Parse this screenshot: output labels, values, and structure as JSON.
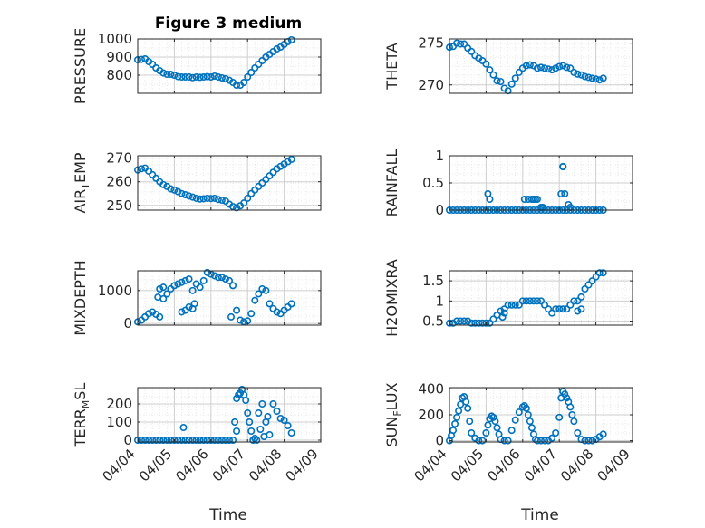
{
  "figure_title": "Figure 3 medium",
  "x_ticks": [
    "04/04",
    "04/05",
    "04/06",
    "04/07",
    "04/08",
    "04/09"
  ],
  "x_label": "Time",
  "colors": {
    "marker": "#0072BD",
    "axes": "#262626",
    "grid": "#dcdcdc"
  },
  "chart_data": [
    {
      "type": "scatter",
      "id": "pressure",
      "ylabel": "PRESSURE",
      "ylim": [
        700,
        1000
      ],
      "yticks": [
        800,
        900,
        1000
      ],
      "xlim": [
        0,
        5
      ],
      "grid": true,
      "series": [
        {
          "x": [
            0.0,
            0.1,
            0.2,
            0.3,
            0.4,
            0.5,
            0.6,
            0.7,
            0.8,
            0.9,
            1.0,
            1.1,
            1.2,
            1.3,
            1.4,
            1.5,
            1.6,
            1.7,
            1.8,
            1.9,
            2.0,
            2.1,
            2.2,
            2.3,
            2.4,
            2.5,
            2.6,
            2.7,
            2.8,
            2.9,
            3.0,
            3.1,
            3.2,
            3.3,
            3.4,
            3.5,
            3.6,
            3.7,
            3.8,
            3.9,
            4.0,
            4.1,
            4.2
          ],
          "y": [
            885,
            887,
            890,
            875,
            860,
            840,
            825,
            812,
            805,
            805,
            800,
            792,
            790,
            790,
            790,
            786,
            790,
            788,
            790,
            792,
            790,
            795,
            790,
            785,
            780,
            772,
            760,
            745,
            745,
            760,
            790,
            815,
            840,
            860,
            880,
            900,
            915,
            930,
            945,
            955,
            970,
            985,
            995
          ]
        }
      ]
    },
    {
      "type": "scatter",
      "id": "theta",
      "ylabel": "THETA",
      "ylim": [
        269,
        275.5
      ],
      "yticks": [
        270,
        275
      ],
      "xlim": [
        0,
        5
      ],
      "grid": true,
      "series": [
        {
          "x": [
            0.0,
            0.1,
            0.2,
            0.3,
            0.4,
            0.5,
            0.6,
            0.7,
            0.8,
            0.9,
            1.0,
            1.1,
            1.2,
            1.3,
            1.4,
            1.5,
            1.6,
            1.7,
            1.8,
            1.9,
            2.0,
            2.1,
            2.2,
            2.3,
            2.4,
            2.5,
            2.6,
            2.7,
            2.8,
            2.9,
            3.0,
            3.1,
            3.2,
            3.3,
            3.4,
            3.5,
            3.6,
            3.7,
            3.8,
            3.9,
            4.0,
            4.1,
            4.2
          ],
          "y": [
            274.5,
            274.6,
            275.0,
            274.9,
            274.9,
            274.4,
            274.0,
            273.5,
            273.2,
            272.9,
            272.5,
            271.8,
            271.2,
            270.5,
            270.4,
            269.6,
            269.3,
            270.1,
            270.8,
            271.5,
            272.0,
            272.3,
            272.4,
            272.3,
            272.0,
            272.1,
            272.0,
            271.9,
            271.8,
            272.0,
            272.2,
            272.3,
            272.1,
            272.0,
            271.5,
            271.3,
            271.2,
            271.0,
            270.9,
            270.8,
            270.7,
            270.6,
            270.8
          ]
        }
      ]
    },
    {
      "type": "scatter",
      "id": "air-temp",
      "ylabel": "AIR_TEMP",
      "ylim": [
        248,
        271
      ],
      "yticks": [
        250,
        260,
        270
      ],
      "xlim": [
        0,
        5
      ],
      "grid": true,
      "series": [
        {
          "x": [
            0.0,
            0.1,
            0.2,
            0.3,
            0.4,
            0.5,
            0.6,
            0.7,
            0.8,
            0.9,
            1.0,
            1.1,
            1.2,
            1.3,
            1.4,
            1.5,
            1.6,
            1.7,
            1.8,
            1.9,
            2.0,
            2.1,
            2.2,
            2.3,
            2.4,
            2.5,
            2.6,
            2.7,
            2.8,
            2.9,
            3.0,
            3.1,
            3.2,
            3.3,
            3.4,
            3.5,
            3.6,
            3.7,
            3.8,
            3.9,
            4.0,
            4.1,
            4.2
          ],
          "y": [
            265,
            265.5,
            265.8,
            264.5,
            263,
            261.5,
            260,
            258.8,
            258,
            257,
            256.5,
            255.8,
            255,
            254.5,
            254,
            253.5,
            253,
            252.7,
            252.8,
            253,
            252.9,
            253,
            252.5,
            252.2,
            251.8,
            250.5,
            249.5,
            249,
            249.8,
            251,
            253,
            255,
            256.5,
            258,
            259.5,
            261,
            262.5,
            264,
            265.5,
            266.5,
            267.5,
            268.5,
            269.5
          ]
        }
      ]
    },
    {
      "type": "scatter",
      "id": "rainfall",
      "ylabel": "RAINFALL",
      "ylim": [
        0,
        1
      ],
      "yticks": [
        0,
        0.5,
        1
      ],
      "xlim": [
        0,
        5
      ],
      "grid": true,
      "series": [
        {
          "x": [
            0.0,
            0.1,
            0.2,
            0.3,
            0.4,
            0.5,
            0.6,
            0.7,
            0.8,
            0.9,
            1.0,
            1.1,
            1.2,
            1.3,
            1.4,
            1.5,
            1.6,
            1.7,
            1.8,
            1.9,
            2.0,
            2.1,
            2.2,
            2.3,
            2.4,
            2.5,
            2.6,
            2.7,
            2.8,
            2.9,
            3.0,
            3.1,
            3.2,
            3.3,
            3.4,
            3.5,
            3.6,
            3.7,
            3.8,
            3.9,
            4.0,
            4.1,
            4.2,
            1.05,
            1.1,
            2.05,
            2.15,
            2.25,
            2.3,
            2.35,
            2.4,
            2.5,
            2.55,
            3.05,
            3.1,
            3.1,
            3.15,
            3.25,
            3.3
          ],
          "y": [
            0,
            0,
            0,
            0,
            0,
            0,
            0,
            0,
            0,
            0,
            0,
            0,
            0,
            0,
            0,
            0,
            0,
            0,
            0,
            0,
            0,
            0,
            0,
            0,
            0,
            0,
            0,
            0,
            0,
            0,
            0,
            0,
            0,
            0,
            0,
            0,
            0,
            0,
            0,
            0,
            0,
            0,
            0,
            0.3,
            0.2,
            0.2,
            0.2,
            0.2,
            0.2,
            0.2,
            0.2,
            0.05,
            0.05,
            0.3,
            0.8,
            0.8,
            0.3,
            0.1,
            0.05
          ]
        }
      ]
    },
    {
      "type": "scatter",
      "id": "mixdepth",
      "ylabel": "MIXDEPTH",
      "ylim": [
        -50,
        1600
      ],
      "yticks": [
        0,
        1000
      ],
      "xlim": [
        0,
        5
      ],
      "grid": true,
      "series": [
        {
          "x": [
            0.0,
            0.1,
            0.2,
            0.3,
            0.4,
            0.5,
            0.6,
            0.7,
            0.8,
            0.9,
            1.0,
            1.1,
            1.2,
            1.3,
            1.4,
            1.5,
            1.6,
            1.7,
            1.8,
            1.9,
            2.0,
            2.1,
            2.2,
            2.3,
            2.4,
            2.5,
            2.6,
            2.7,
            2.8,
            2.9,
            3.0,
            3.1,
            3.2,
            3.3,
            3.4,
            3.5,
            3.6,
            3.7,
            3.8,
            3.9,
            4.0,
            4.1,
            4.2,
            0.55,
            0.6,
            0.7,
            1.2,
            1.3,
            1.4,
            1.5,
            1.55,
            2.55
          ],
          "y": [
            50,
            100,
            200,
            300,
            350,
            280,
            200,
            750,
            900,
            1050,
            1150,
            1200,
            1250,
            1300,
            1350,
            1000,
            1200,
            1100,
            1300,
            1550,
            1500,
            1450,
            1400,
            1400,
            1350,
            1300,
            1150,
            400,
            100,
            50,
            80,
            300,
            700,
            900,
            1050,
            1000,
            600,
            450,
            350,
            300,
            400,
            500,
            600,
            800,
            1050,
            1100,
            350,
            400,
            500,
            450,
            600,
            200
          ]
        }
      ]
    },
    {
      "type": "scatter",
      "id": "h2omixra",
      "ylabel": "H2OMIXRA",
      "ylim": [
        0.4,
        1.75
      ],
      "yticks": [
        0.5,
        1,
        1.5
      ],
      "xlim": [
        0,
        5
      ],
      "grid": true,
      "series": [
        {
          "x": [
            0.0,
            0.1,
            0.2,
            0.3,
            0.4,
            0.5,
            0.6,
            0.7,
            0.8,
            0.9,
            1.0,
            1.1,
            1.2,
            1.3,
            1.4,
            1.5,
            1.6,
            1.7,
            1.8,
            1.9,
            2.0,
            2.1,
            2.2,
            2.3,
            2.4,
            2.5,
            2.6,
            2.7,
            2.8,
            2.9,
            3.0,
            3.1,
            3.2,
            3.3,
            3.4,
            3.5,
            3.6,
            3.7,
            3.8,
            3.9,
            4.0,
            4.1,
            4.2,
            1.45,
            1.5,
            3.5,
            3.6
          ],
          "y": [
            0.45,
            0.45,
            0.5,
            0.5,
            0.5,
            0.5,
            0.45,
            0.45,
            0.45,
            0.45,
            0.45,
            0.45,
            0.55,
            0.65,
            0.75,
            0.8,
            0.9,
            0.9,
            0.9,
            0.9,
            1.0,
            1.0,
            1.0,
            1.0,
            1.0,
            1.0,
            0.9,
            0.8,
            0.7,
            0.8,
            0.8,
            0.8,
            0.8,
            0.9,
            1.0,
            1.0,
            1.1,
            1.3,
            1.4,
            1.5,
            1.6,
            1.7,
            1.7,
            0.6,
            0.7,
            0.75,
            0.8
          ]
        }
      ]
    },
    {
      "type": "scatter",
      "id": "terr-msl",
      "ylabel": "TERR_MSL",
      "ylim": [
        -10,
        290
      ],
      "yticks": [
        0,
        100,
        200
      ],
      "xlim": [
        0,
        5
      ],
      "grid": true,
      "series": [
        {
          "x": [
            0.0,
            0.1,
            0.2,
            0.3,
            0.4,
            0.5,
            0.6,
            0.7,
            0.8,
            0.9,
            1.0,
            1.1,
            1.2,
            1.3,
            1.4,
            1.5,
            1.6,
            1.7,
            1.8,
            1.9,
            2.0,
            2.1,
            2.2,
            2.3,
            2.4,
            2.5,
            2.6,
            2.7,
            2.75,
            2.8,
            2.85,
            2.9,
            2.95,
            3.0,
            3.05,
            3.1,
            3.15,
            3.2,
            3.3,
            3.4,
            3.5,
            3.6,
            3.7,
            3.8,
            3.9,
            4.0,
            4.1,
            4.2,
            1.25,
            2.65,
            2.7,
            3.25,
            3.35,
            3.45,
            3.55
          ],
          "y": [
            0,
            0,
            0,
            0,
            0,
            0,
            0,
            0,
            0,
            0,
            0,
            0,
            0,
            0,
            0,
            0,
            0,
            0,
            0,
            0,
            0,
            0,
            0,
            0,
            0,
            0,
            0,
            230,
            250,
            260,
            280,
            250,
            220,
            150,
            100,
            50,
            0,
            10,
            150,
            200,
            100,
            30,
            200,
            160,
            120,
            110,
            80,
            40,
            70,
            100,
            50,
            0,
            60,
            20,
            130
          ]
        }
      ]
    },
    {
      "type": "scatter",
      "id": "sun-flux",
      "ylabel": "SUN_FLUX",
      "ylim": [
        -10,
        410
      ],
      "yticks": [
        0,
        200,
        400
      ],
      "xlim": [
        0,
        5
      ],
      "grid": true,
      "series": [
        {
          "x": [
            0.0,
            0.05,
            0.1,
            0.15,
            0.2,
            0.25,
            0.3,
            0.35,
            0.4,
            0.45,
            0.5,
            0.55,
            0.6,
            0.7,
            0.8,
            0.9,
            1.0,
            1.05,
            1.1,
            1.15,
            1.2,
            1.25,
            1.3,
            1.35,
            1.4,
            1.5,
            1.6,
            1.7,
            1.8,
            1.9,
            2.0,
            2.05,
            2.1,
            2.15,
            2.2,
            2.25,
            2.3,
            2.35,
            2.4,
            2.5,
            2.6,
            2.7,
            2.8,
            2.9,
            3.0,
            3.05,
            3.1,
            3.15,
            3.2,
            3.25,
            3.3,
            3.35,
            3.4,
            3.5,
            3.6,
            3.7,
            3.8,
            3.9,
            4.0,
            4.1,
            4.2
          ],
          "y": [
            0,
            40,
            80,
            130,
            180,
            230,
            280,
            330,
            340,
            300,
            250,
            150,
            60,
            20,
            0,
            0,
            60,
            120,
            170,
            190,
            180,
            150,
            100,
            50,
            10,
            0,
            0,
            80,
            160,
            220,
            260,
            270,
            250,
            200,
            150,
            100,
            50,
            10,
            0,
            0,
            0,
            0,
            20,
            60,
            180,
            330,
            380,
            360,
            330,
            300,
            260,
            200,
            150,
            60,
            10,
            0,
            0,
            0,
            10,
            30,
            50
          ]
        }
      ]
    }
  ]
}
